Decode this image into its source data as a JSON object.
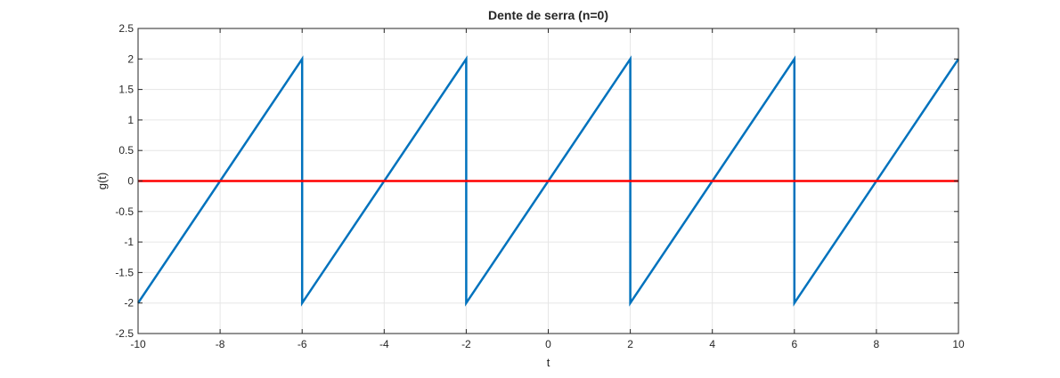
{
  "chart_data": {
    "type": "line",
    "title": "Dente de serra (n=0)",
    "xlabel": "t",
    "ylabel": "g(t)",
    "xlim": [
      -10,
      10
    ],
    "ylim": [
      -2.5,
      2.5
    ],
    "xticks": [
      -10,
      -8,
      -6,
      -4,
      -2,
      0,
      2,
      4,
      6,
      8,
      10
    ],
    "yticks": [
      -2.5,
      -2,
      -1.5,
      -1,
      -0.5,
      0,
      0.5,
      1,
      1.5,
      2,
      2.5
    ],
    "grid": true,
    "series": [
      {
        "color": "#0072BD",
        "x": [
          -10,
          -6,
          -6,
          -2,
          -2,
          2,
          2,
          6,
          6,
          10
        ],
        "y": [
          -2,
          2,
          -2,
          2,
          -2,
          2,
          -2,
          2,
          -2,
          2
        ]
      },
      {
        "color": "#FF0000",
        "x": [
          -10,
          10
        ],
        "y": [
          0,
          0
        ]
      }
    ]
  }
}
